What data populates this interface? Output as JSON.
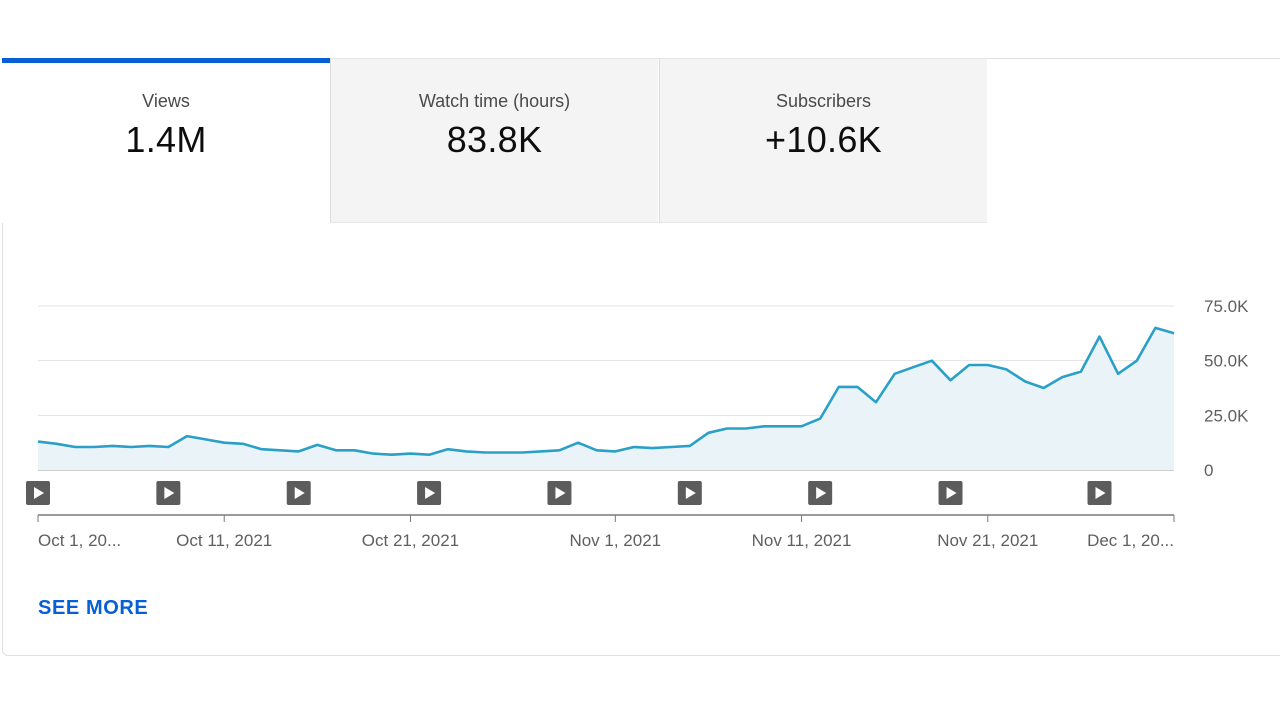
{
  "tabs": [
    {
      "label": "Views",
      "value": "1.4M",
      "active": true
    },
    {
      "label": "Watch time (hours)",
      "value": "83.8K",
      "active": false
    },
    {
      "label": "Subscribers",
      "value": "+10.6K",
      "active": false
    }
  ],
  "see_more_label": "SEE MORE",
  "colors": {
    "accent": "#065fd4",
    "line": "#2aa0c8",
    "fill": "#eaf4f8"
  },
  "chart_data": {
    "type": "area",
    "ylim": [
      0,
      75000
    ],
    "y_ticks": [
      {
        "value": 0,
        "label": "0"
      },
      {
        "value": 25000,
        "label": "25.0K"
      },
      {
        "value": 50000,
        "label": "50.0K"
      },
      {
        "value": 75000,
        "label": "75.0K"
      }
    ],
    "x_tick_labels": [
      {
        "day": 0,
        "label": "Oct 1, 20..."
      },
      {
        "day": 10,
        "label": "Oct 11, 2021"
      },
      {
        "day": 20,
        "label": "Oct 21, 2021"
      },
      {
        "day": 31,
        "label": "Nov 1, 2021"
      },
      {
        "day": 41,
        "label": "Nov 11, 2021"
      },
      {
        "day": 51,
        "label": "Nov 21, 2021"
      },
      {
        "day": 61,
        "label": "Dec 1, 20..."
      }
    ],
    "x_range_days": [
      0,
      61
    ],
    "series": [
      {
        "values": [
          13000,
          12000,
          10500,
          10500,
          11000,
          10500,
          11000,
          10500,
          15500,
          14000,
          12500,
          12000,
          9500,
          9000,
          8500,
          11500,
          9000,
          9000,
          7500,
          7000,
          7500,
          7000,
          9500,
          8500,
          8000,
          8000,
          8000,
          8500,
          9000,
          12500,
          9000,
          8500,
          10500,
          10000,
          10500,
          11000,
          17000,
          19000,
          19000,
          20000,
          20000,
          20000,
          23500,
          38000,
          38000,
          31000,
          44000,
          47000,
          50000,
          41000,
          48000,
          48000,
          46000,
          40500,
          37500,
          42500,
          45000,
          61000,
          44000,
          50000,
          65000,
          62500
        ]
      }
    ],
    "video_markers_days": [
      0,
      7,
      14,
      21,
      28,
      35,
      42,
      49,
      57
    ]
  }
}
